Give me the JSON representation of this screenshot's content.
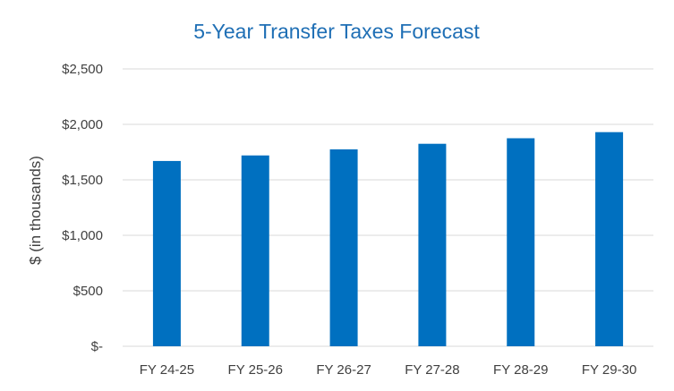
{
  "chart_data": {
    "type": "bar",
    "title": "5-Year Transfer Taxes Forecast",
    "xlabel": "",
    "ylabel": "$ (in thousands)",
    "categories": [
      "FY 24-25",
      "FY 25-26",
      "FY 26-27",
      "FY 27-28",
      "FY 28-29",
      "FY 29-30"
    ],
    "values": [
      1670,
      1720,
      1775,
      1825,
      1875,
      1930
    ],
    "ylim": [
      0,
      2500
    ],
    "yticks": [
      {
        "value": 0,
        "label": "$-"
      },
      {
        "value": 500,
        "label": "$500"
      },
      {
        "value": 1000,
        "label": "$1,000"
      },
      {
        "value": 1500,
        "label": "$1,500"
      },
      {
        "value": 2000,
        "label": "$2,000"
      },
      {
        "value": 2500,
        "label": "$2,500"
      }
    ],
    "grid": true,
    "legend": "none",
    "bar_color": "#0070c0"
  }
}
